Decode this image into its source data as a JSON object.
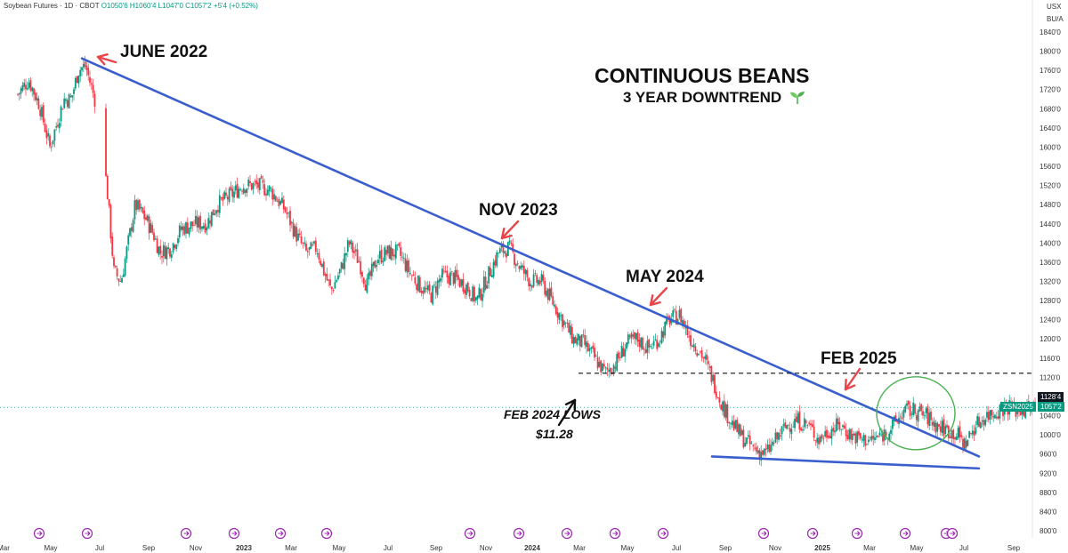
{
  "header": {
    "symbol_line": "Soybean Futures · 1D · CBOT",
    "ohlc": "O1050'6 H1060'4 L1047'0 C1057'2 +5'4 (+0.52%)"
  },
  "axis": {
    "currency": "USX",
    "units": "BU/A"
  },
  "title": "CONTINUOUS BEANS",
  "subtitle": "3 YEAR DOWNTREND",
  "annotations": {
    "june_2022": "JUNE 2022",
    "nov_2023": "NOV 2023",
    "may_2024": "MAY 2024",
    "feb_2025": "FEB 2025",
    "feb_2024_lows_line1": "FEB 2024 LOWS",
    "feb_2024_lows_line2": "$11.28"
  },
  "price_tags": {
    "level": "1128'4",
    "ticker": "ZSN2025",
    "last": "1057'2"
  },
  "colors": {
    "up": "#089981",
    "down": "#f23645",
    "trendline": "#3a5fcd",
    "arrow": "#e8454a",
    "circle": "#4caf50",
    "seedling": "#4caf50"
  },
  "chart_data": {
    "type": "candlestick",
    "y_ticks": [
      "1840'0",
      "1800'0",
      "1760'0",
      "1720'0",
      "1680'0",
      "1640'0",
      "1600'0",
      "1560'0",
      "1520'0",
      "1480'0",
      "1440'0",
      "1400'0",
      "1360'0",
      "1320'0",
      "1280'0",
      "1240'0",
      "1200'0",
      "1160'0",
      "1120'0",
      "1080'0",
      "1040'0",
      "1000'0",
      "960'0",
      "920'0",
      "880'0",
      "840'0",
      "800'0"
    ],
    "ylim": [
      790,
      1860
    ],
    "x_ticks": [
      "Mar",
      "May",
      "Jul",
      "Sep",
      "Nov",
      "2023",
      "Mar",
      "May",
      "Jul",
      "Sep",
      "Nov",
      "2024",
      "Mar",
      "May",
      "Jul",
      "Sep",
      "Nov",
      "2025",
      "Mar",
      "May",
      "Jul",
      "Sep"
    ],
    "bold_x_ticks": [
      "2023",
      "2024",
      "2025"
    ],
    "price_path": [
      [
        0,
        1710
      ],
      [
        0.03,
        1740
      ],
      [
        0.06,
        1690
      ],
      [
        0.09,
        1600
      ],
      [
        0.11,
        1650
      ],
      [
        0.13,
        1700
      ],
      [
        0.15,
        1700
      ],
      [
        0.17,
        1760
      ],
      [
        0.19,
        1770
      ],
      [
        0.22,
        1690
      ],
      [
        0.25,
        1520
      ],
      [
        0.27,
        1340
      ],
      [
        0.29,
        1320
      ],
      [
        0.31,
        1400
      ],
      [
        0.33,
        1480
      ],
      [
        0.36,
        1450
      ],
      [
        0.38,
        1420
      ],
      [
        0.4,
        1380
      ],
      [
        0.43,
        1390
      ],
      [
        0.46,
        1430
      ],
      [
        0.5,
        1440
      ],
      [
        0.53,
        1440
      ],
      [
        0.56,
        1480
      ],
      [
        0.6,
        1500
      ],
      [
        0.63,
        1520
      ],
      [
        0.67,
        1520
      ],
      [
        0.71,
        1510
      ],
      [
        0.75,
        1470
      ],
      [
        0.78,
        1420
      ],
      [
        0.81,
        1380
      ],
      [
        0.84,
        1390
      ],
      [
        0.86,
        1340
      ],
      [
        0.88,
        1300
      ],
      [
        0.91,
        1350
      ],
      [
        0.93,
        1400
      ],
      [
        0.96,
        1360
      ],
      [
        0.98,
        1310
      ],
      [
        1.01,
        1370
      ],
      [
        1.04,
        1380
      ],
      [
        1.07,
        1380
      ],
      [
        1.1,
        1340
      ],
      [
        1.13,
        1310
      ],
      [
        1.16,
        1290
      ],
      [
        1.19,
        1330
      ],
      [
        1.22,
        1330
      ],
      [
        1.26,
        1310
      ],
      [
        1.29,
        1280
      ],
      [
        1.32,
        1330
      ],
      [
        1.35,
        1380
      ],
      [
        1.38,
        1390
      ],
      [
        1.41,
        1350
      ],
      [
        1.44,
        1320
      ],
      [
        1.47,
        1320
      ],
      [
        1.5,
        1280
      ],
      [
        1.53,
        1240
      ],
      [
        1.56,
        1200
      ],
      [
        1.59,
        1190
      ],
      [
        1.62,
        1160
      ],
      [
        1.65,
        1130
      ],
      [
        1.68,
        1150
      ],
      [
        1.71,
        1190
      ],
      [
        1.74,
        1200
      ],
      [
        1.77,
        1180
      ],
      [
        1.8,
        1200
      ],
      [
        1.83,
        1240
      ],
      [
        1.86,
        1250
      ],
      [
        1.89,
        1200
      ],
      [
        1.92,
        1170
      ],
      [
        1.95,
        1120
      ],
      [
        1.98,
        1060
      ],
      [
        2.01,
        1020
      ],
      [
        2.04,
        990
      ],
      [
        2.07,
        970
      ],
      [
        2.1,
        960
      ],
      [
        2.13,
        990
      ],
      [
        2.16,
        1020
      ],
      [
        2.19,
        1030
      ],
      [
        2.22,
        1020
      ],
      [
        2.25,
        990
      ],
      [
        2.28,
        1010
      ],
      [
        2.31,
        1020
      ],
      [
        2.34,
        1000
      ],
      [
        2.37,
        990
      ],
      [
        2.4,
        990
      ],
      [
        2.43,
        1000
      ],
      [
        2.46,
        1020
      ],
      [
        2.49,
        1050
      ],
      [
        2.52,
        1050
      ],
      [
        2.55,
        1040
      ],
      [
        2.58,
        1020
      ],
      [
        2.61,
        1010
      ],
      [
        2.64,
        1000
      ],
      [
        2.66,
        980
      ],
      [
        2.69,
        1020
      ],
      [
        2.72,
        1040
      ],
      [
        2.75,
        1050
      ],
      [
        2.78,
        1060
      ],
      [
        2.81,
        1050
      ],
      [
        2.84,
        1055
      ],
      [
        2.86,
        1057
      ]
    ],
    "trendlines": [
      {
        "from": [
          "2022-06",
          1785
        ],
        "to": [
          "2025-07",
          955
        ]
      },
      {
        "from": [
          "2024-08",
          955
        ],
        "to": [
          "2025-07",
          930
        ]
      }
    ],
    "horizontal_level": 1128.5,
    "last_price": 1057.25
  }
}
